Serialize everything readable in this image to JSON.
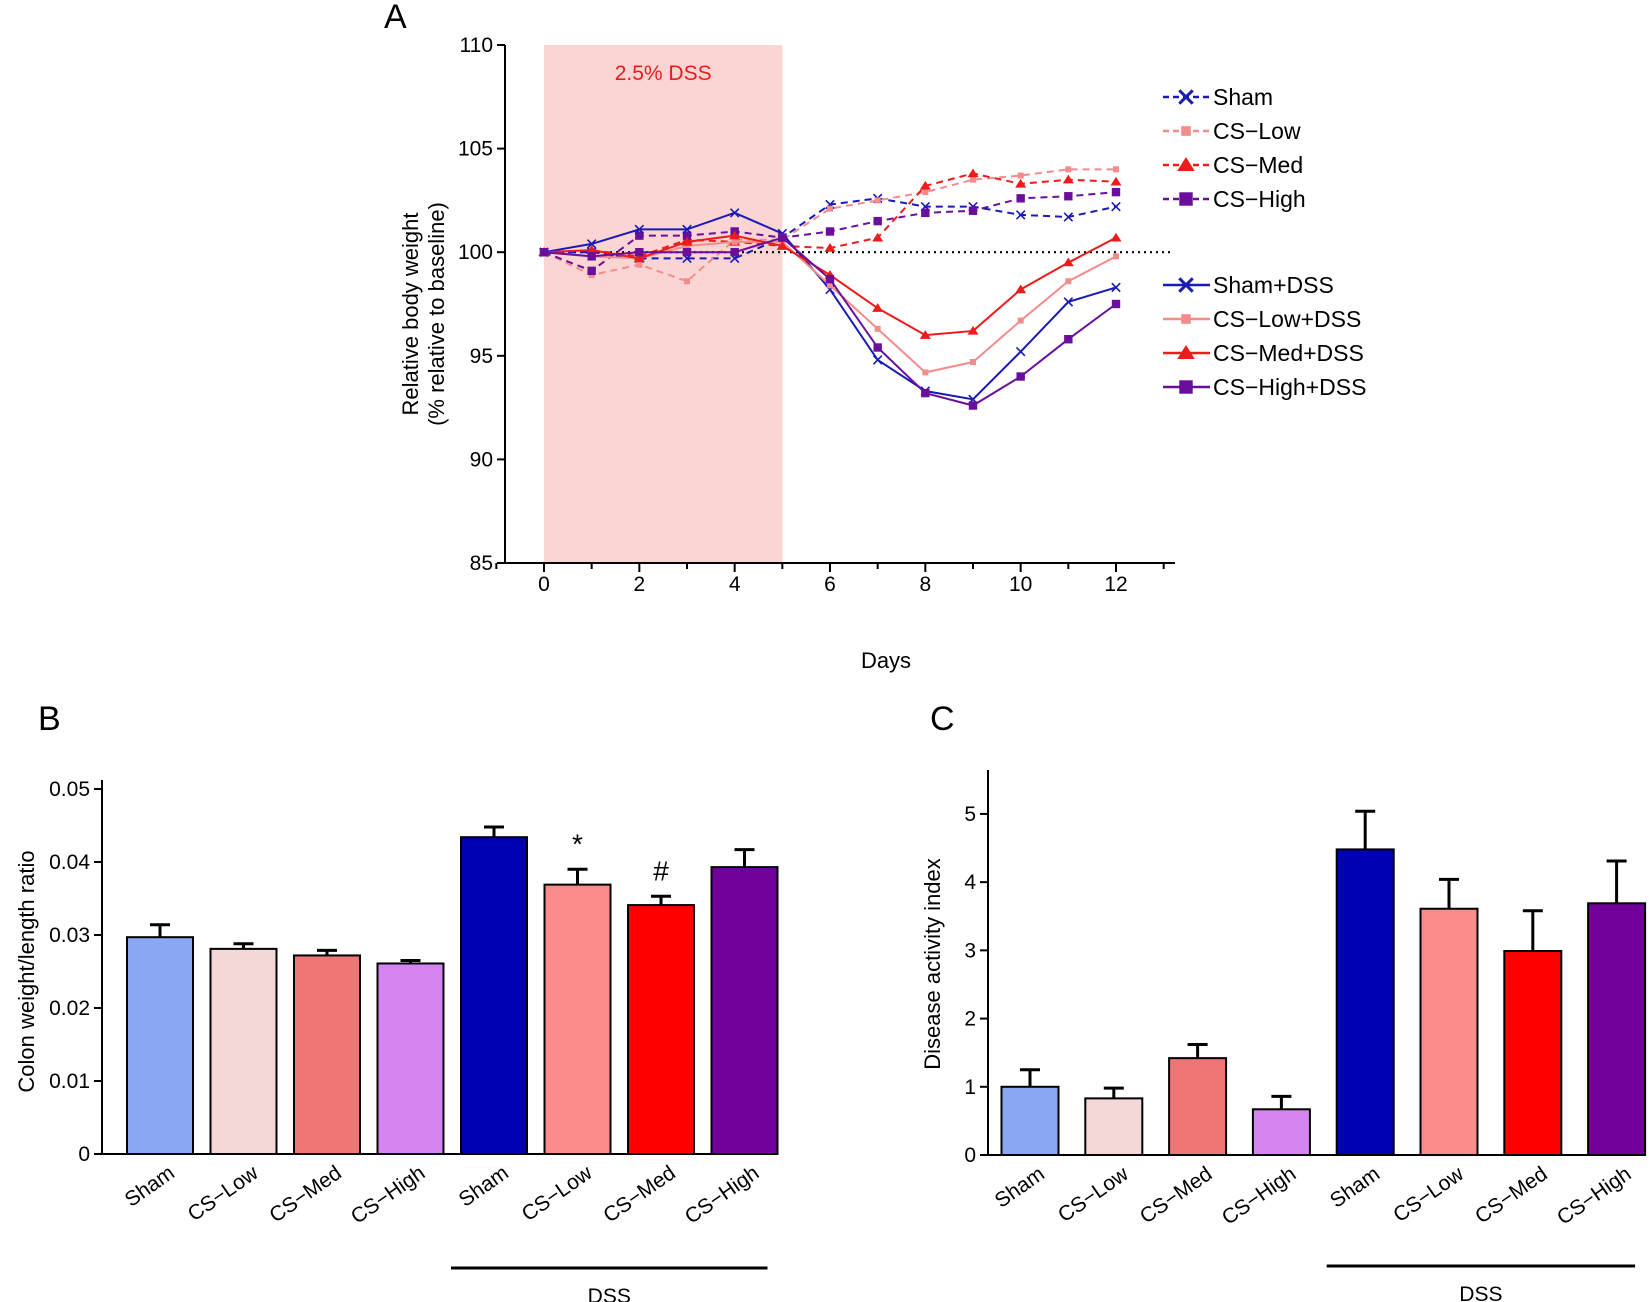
{
  "chart_data": [
    {
      "type": "line",
      "panel": "A",
      "title": "",
      "xlabel": "Days",
      "ylabel": [
        "Relative body weight",
        "(% relative to baseline)"
      ],
      "xlim": [
        -1,
        13
      ],
      "ylim": [
        85,
        110
      ],
      "xticks": [
        0,
        2,
        4,
        6,
        8,
        10,
        12
      ],
      "yticks": [
        85,
        90,
        95,
        100,
        105,
        110
      ],
      "baseline": 100,
      "shaded_region": {
        "x0": 0,
        "x1": 5,
        "label": "2.5% DSS",
        "color": "#fbd4d4"
      },
      "x": [
        0,
        1,
        2,
        3,
        4,
        5,
        6,
        7,
        8,
        9,
        10,
        11,
        12
      ],
      "series": [
        {
          "name": "Sham",
          "color": "#1a1ab4",
          "dashed": true,
          "marker": "x",
          "values": [
            100.0,
            100.0,
            99.7,
            99.7,
            99.7,
            100.7,
            102.3,
            102.6,
            102.2,
            102.2,
            101.8,
            101.7,
            102.2
          ]
        },
        {
          "name": "CS−Low",
          "color": "#f48c8c",
          "dashed": true,
          "marker": "square-small",
          "values": [
            100.0,
            98.9,
            99.4,
            98.6,
            100.6,
            100.6,
            102.1,
            102.5,
            102.9,
            103.5,
            103.7,
            104.0,
            104.0
          ]
        },
        {
          "name": "CS−Med",
          "color": "#ee1b1b",
          "dashed": true,
          "marker": "triangle",
          "values": [
            100.0,
            100.1,
            99.8,
            100.6,
            100.5,
            100.3,
            100.2,
            100.7,
            103.2,
            103.8,
            103.3,
            103.5,
            103.4
          ]
        },
        {
          "name": "CS−High",
          "color": "#6a0f9c",
          "dashed": true,
          "marker": "square",
          "values": [
            100.0,
            99.1,
            100.8,
            100.8,
            101.0,
            100.7,
            101.0,
            101.5,
            101.9,
            102.0,
            102.6,
            102.7,
            102.9
          ]
        },
        {
          "name": "Sham+DSS",
          "color": "#1a1ab4",
          "dashed": false,
          "marker": "x",
          "values": [
            100.0,
            100.4,
            101.1,
            101.1,
            101.9,
            100.9,
            98.2,
            94.8,
            93.3,
            92.9,
            95.2,
            97.6,
            98.3
          ]
        },
        {
          "name": "CS−Low+DSS",
          "color": "#f48c8c",
          "dashed": false,
          "marker": "square-small",
          "values": [
            100.0,
            99.8,
            99.7,
            100.3,
            100.5,
            100.5,
            98.4,
            96.3,
            94.2,
            94.7,
            96.7,
            98.6,
            99.8
          ]
        },
        {
          "name": "CS−Med+DSS",
          "color": "#ee1b1b",
          "dashed": false,
          "marker": "triangle",
          "values": [
            100.0,
            100.1,
            99.7,
            100.5,
            100.8,
            100.3,
            98.9,
            97.3,
            96.0,
            96.2,
            98.2,
            99.5,
            100.7
          ]
        },
        {
          "name": "CS−High+DSS",
          "color": "#6a0f9c",
          "dashed": false,
          "marker": "square",
          "values": [
            100.0,
            99.8,
            100.0,
            100.0,
            100.0,
            100.7,
            98.7,
            95.4,
            93.2,
            92.6,
            94.0,
            95.8,
            97.5
          ]
        }
      ]
    },
    {
      "type": "bar",
      "panel": "B",
      "title": "",
      "xlabel": "",
      "ylabel": "Colon weight/length ratio",
      "ylim": [
        0,
        0.05
      ],
      "yticks": [
        0,
        0.01,
        0.02,
        0.03,
        0.04,
        0.05
      ],
      "ytick_labels": [
        "0",
        "0.01",
        "0.02",
        "0.03",
        "0.04",
        "0.05"
      ],
      "categories": [
        "Sham",
        "CS−Low",
        "CS−Med",
        "CS−High",
        "Sham",
        "CS−Low",
        "CS−Med",
        "CS−High"
      ],
      "values": [
        0.0297,
        0.0281,
        0.0272,
        0.0261,
        0.0434,
        0.0369,
        0.0341,
        0.0393
      ],
      "errors": [
        0.0017,
        0.0007,
        0.0007,
        0.0004,
        0.0014,
        0.0021,
        0.0012,
        0.0024
      ],
      "colors": [
        "#8aa8f2",
        "#f4d7d7",
        "#ef7676",
        "#d485f0",
        "#0000b4",
        "#fc8c8c",
        "#ff0000",
        "#72009b"
      ],
      "annotations": [
        "",
        "",
        "",
        "",
        "",
        "*",
        "#",
        ""
      ],
      "group_label": {
        "text": "DSS",
        "from_index": 4,
        "to_index": 7
      }
    },
    {
      "type": "bar",
      "panel": "C",
      "title": "",
      "xlabel": "",
      "ylabel": "Disease activity index",
      "ylim": [
        0,
        5.6
      ],
      "yticks": [
        0,
        1,
        2,
        3,
        4,
        5
      ],
      "ytick_labels": [
        "0",
        "1",
        "2",
        "3",
        "4",
        "5"
      ],
      "categories": [
        "Sham",
        "CS−Low",
        "CS−Med",
        "CS−High",
        "Sham",
        "CS−Low",
        "CS−Med",
        "CS−High"
      ],
      "values": [
        1.0,
        0.83,
        1.42,
        0.67,
        4.48,
        3.61,
        2.99,
        3.69
      ],
      "errors": [
        0.25,
        0.15,
        0.2,
        0.19,
        0.56,
        0.43,
        0.59,
        0.62
      ],
      "colors": [
        "#8aa8f2",
        "#f4d7d7",
        "#ef7676",
        "#d485f0",
        "#0000b4",
        "#fc8c8c",
        "#ff0000",
        "#72009b"
      ],
      "annotations": [
        "",
        "",
        "",
        "",
        "",
        "",
        "",
        ""
      ],
      "group_label": {
        "text": "DSS",
        "from_index": 4,
        "to_index": 7
      }
    }
  ]
}
